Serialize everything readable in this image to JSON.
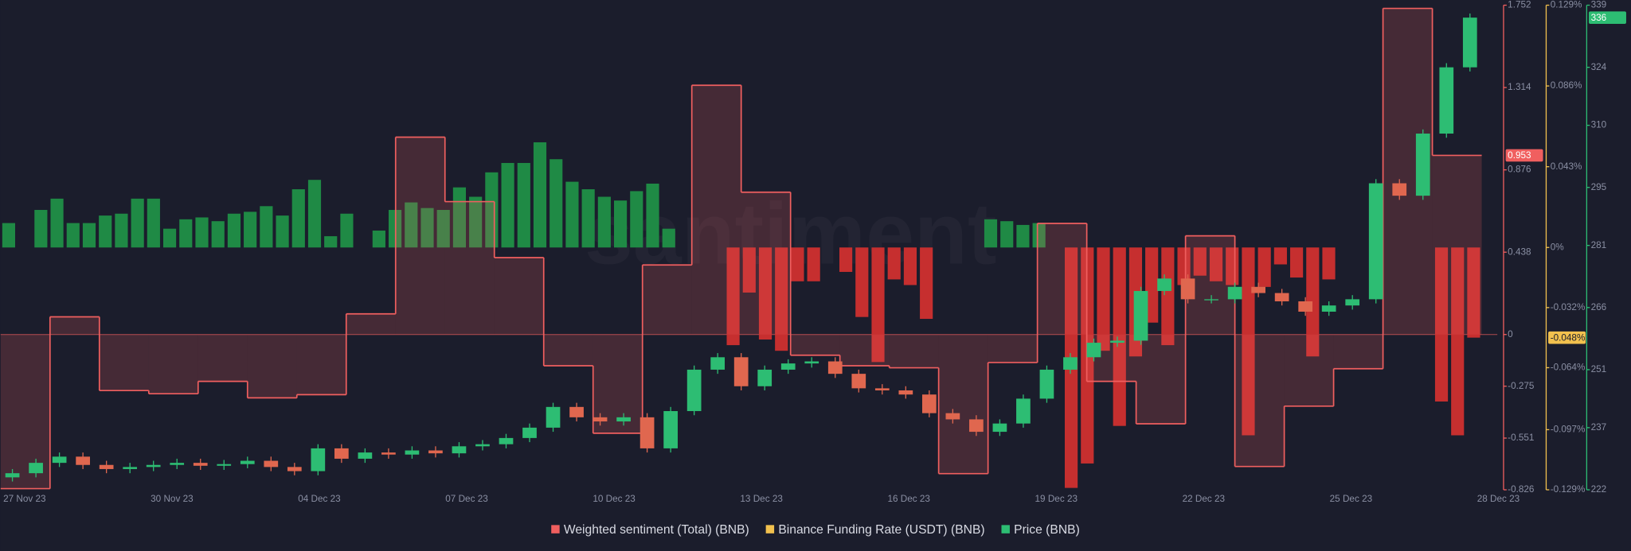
{
  "chart_data": {
    "type": "combo",
    "watermark": "santiment",
    "xtick_labels": [
      "27 Nov 23",
      "30 Nov 23",
      "04 Dec 23",
      "07 Dec 23",
      "10 Dec 23",
      "13 Dec 23",
      "16 Dec 23",
      "19 Dec 23",
      "22 Dec 23",
      "25 Dec 23",
      "28 Dec 23"
    ],
    "ylim": [
      -0.826,
      1.752
    ],
    "yticks": [
      1.752,
      1.314,
      0.876,
      0.438,
      0,
      -0.275,
      -0.551,
      -0.826
    ],
    "y2lim": [
      -0.129,
      0.129
    ],
    "y2ticks": [
      {
        "value": 0.129,
        "label": "0.129%"
      },
      {
        "value": 0.086,
        "label": "0.086%"
      },
      {
        "value": 0.043,
        "label": "0.043%"
      },
      {
        "value": 0,
        "label": "0%"
      },
      {
        "value": -0.032,
        "label": "-0.032%"
      },
      {
        "value": -0.064,
        "label": "-0.064%"
      },
      {
        "value": -0.097,
        "label": "-0.097%"
      },
      {
        "value": -0.129,
        "label": "-0.129%"
      }
    ],
    "y3lim": [
      222,
      339
    ],
    "y3ticks": [
      339,
      324,
      310,
      295,
      281,
      266,
      251,
      237,
      222
    ],
    "series": [
      {
        "name": "Weighted sentiment (Total) (BNB)",
        "type": "step",
        "axis": "y",
        "color": "#f05f5f",
        "values": [
          -0.82,
          0.094,
          -0.298,
          -0.315,
          -0.249,
          -0.337,
          -0.32,
          0.11,
          1.05,
          0.707,
          0.409,
          -0.166,
          -0.525,
          0.37,
          1.326,
          0.757,
          -0.11,
          -0.166,
          -0.177,
          -0.74,
          -0.149,
          0.591,
          -0.249,
          -0.475,
          0.525,
          -0.702,
          -0.381,
          -0.182,
          1.735,
          0.953
        ],
        "last": 0.953
      },
      {
        "name": "Binance Funding Rate (USDT) (BNB)",
        "type": "bar",
        "axis": "y2",
        "color": "#f2c14e",
        "up_color": "#1f8a45",
        "down_color": "#c62f2f",
        "values": [
          0.013,
          0,
          0.02,
          0.026,
          0.013,
          0.013,
          0.017,
          0.018,
          0.026,
          0.026,
          0.01,
          0.015,
          0.016,
          0.014,
          0.018,
          0.019,
          0.022,
          0.017,
          0.031,
          0.036,
          0.006,
          0.018,
          0,
          0.009,
          0.02,
          0.024,
          0.021,
          0.02,
          0.032,
          0.027,
          0.04,
          0.045,
          0.045,
          0.056,
          0.047,
          0.035,
          0.031,
          0.027,
          0.025,
          0.03,
          0.034,
          0.01,
          0,
          0,
          0,
          -0.052,
          -0.024,
          -0.049,
          -0.055,
          -0.018,
          -0.018,
          0,
          -0.013,
          -0.037,
          -0.061,
          -0.017,
          -0.02,
          -0.038,
          0,
          0,
          0,
          0.015,
          0.014,
          0.012,
          0.013,
          0,
          -0.128,
          -0.115,
          -0.055,
          -0.095,
          -0.058,
          -0.04,
          -0.052,
          -0.02,
          -0.015,
          -0.018,
          -0.02,
          -0.1,
          -0.021,
          -0.009,
          -0.016,
          -0.058,
          -0.017,
          0,
          0,
          0,
          0,
          0,
          0,
          -0.082,
          -0.1,
          -0.048
        ],
        "last": {
          "value": -0.048,
          "label": "-0.048%"
        }
      },
      {
        "name": "Price (BNB)",
        "type": "candlestick",
        "axis": "y3",
        "color": "#2dbd73",
        "up_color": "#2dbd73",
        "down_color": "#e0674f",
        "open": [
          225,
          226,
          228.5,
          230,
          228,
          227,
          227.5,
          228,
          228.5,
          227.8,
          228.2,
          229,
          227.5,
          226.5,
          232,
          229.5,
          231,
          230.5,
          231.5,
          230.8,
          232.5,
          233,
          234.5,
          237,
          242,
          239.5,
          238.5,
          239.5,
          232,
          241,
          251,
          254,
          247,
          251,
          252.5,
          253,
          250,
          246.5,
          246,
          245,
          240.5,
          239,
          236,
          238,
          244,
          251,
          254,
          257.5,
          258,
          270,
          273,
          268,
          268,
          271,
          269.5,
          267.5,
          265,
          266.5,
          268,
          296,
          293,
          308,
          324
        ],
        "high": [
          227,
          229.5,
          231,
          231,
          229,
          228.5,
          229,
          229.5,
          229.5,
          229.2,
          230,
          230,
          228.5,
          233,
          233,
          232,
          232,
          232.5,
          232.5,
          233.5,
          234,
          235.5,
          238,
          243,
          243,
          240.5,
          240.5,
          240.5,
          242,
          252,
          255,
          255,
          252,
          253.5,
          254,
          254,
          251,
          247.5,
          247,
          246,
          241.5,
          240,
          239,
          245,
          252,
          255,
          258.5,
          259,
          271,
          274,
          274,
          269,
          272,
          272,
          270.5,
          268.5,
          267.5,
          269,
          297,
          297,
          309,
          325,
          337
        ],
        "low": [
          224,
          225,
          227.5,
          227,
          226,
          226,
          226.5,
          227,
          226.8,
          226.8,
          227.2,
          226.5,
          225.5,
          225.5,
          228.5,
          228.5,
          229.5,
          229.5,
          229.8,
          229.8,
          231.5,
          232,
          233.5,
          236,
          238.5,
          237.5,
          237.5,
          231,
          231,
          240,
          250,
          246,
          246,
          250,
          251.5,
          249,
          245.5,
          245,
          244,
          239.5,
          238,
          235,
          235,
          237,
          243,
          250,
          253,
          256.5,
          257,
          269,
          267,
          267,
          267,
          268.5,
          266.5,
          264,
          264,
          265.5,
          267,
          292,
          292,
          307,
          323
        ],
        "close": [
          226,
          228.5,
          230,
          228,
          227,
          227.5,
          228,
          228.5,
          227.8,
          228.2,
          229,
          227.5,
          226.5,
          232,
          229.5,
          231,
          230.5,
          231.5,
          230.8,
          232.5,
          233,
          234.5,
          237,
          242,
          239.5,
          238.5,
          239.5,
          232,
          241,
          251,
          254,
          247,
          251,
          252.5,
          253,
          250,
          246.5,
          246,
          245,
          240.5,
          239,
          236,
          238,
          244,
          251,
          254,
          257.5,
          258,
          270,
          273,
          268,
          268,
          271,
          269.5,
          267.5,
          265,
          266.5,
          268,
          296,
          293,
          308,
          324,
          336
        ],
        "last": 336
      }
    ]
  }
}
